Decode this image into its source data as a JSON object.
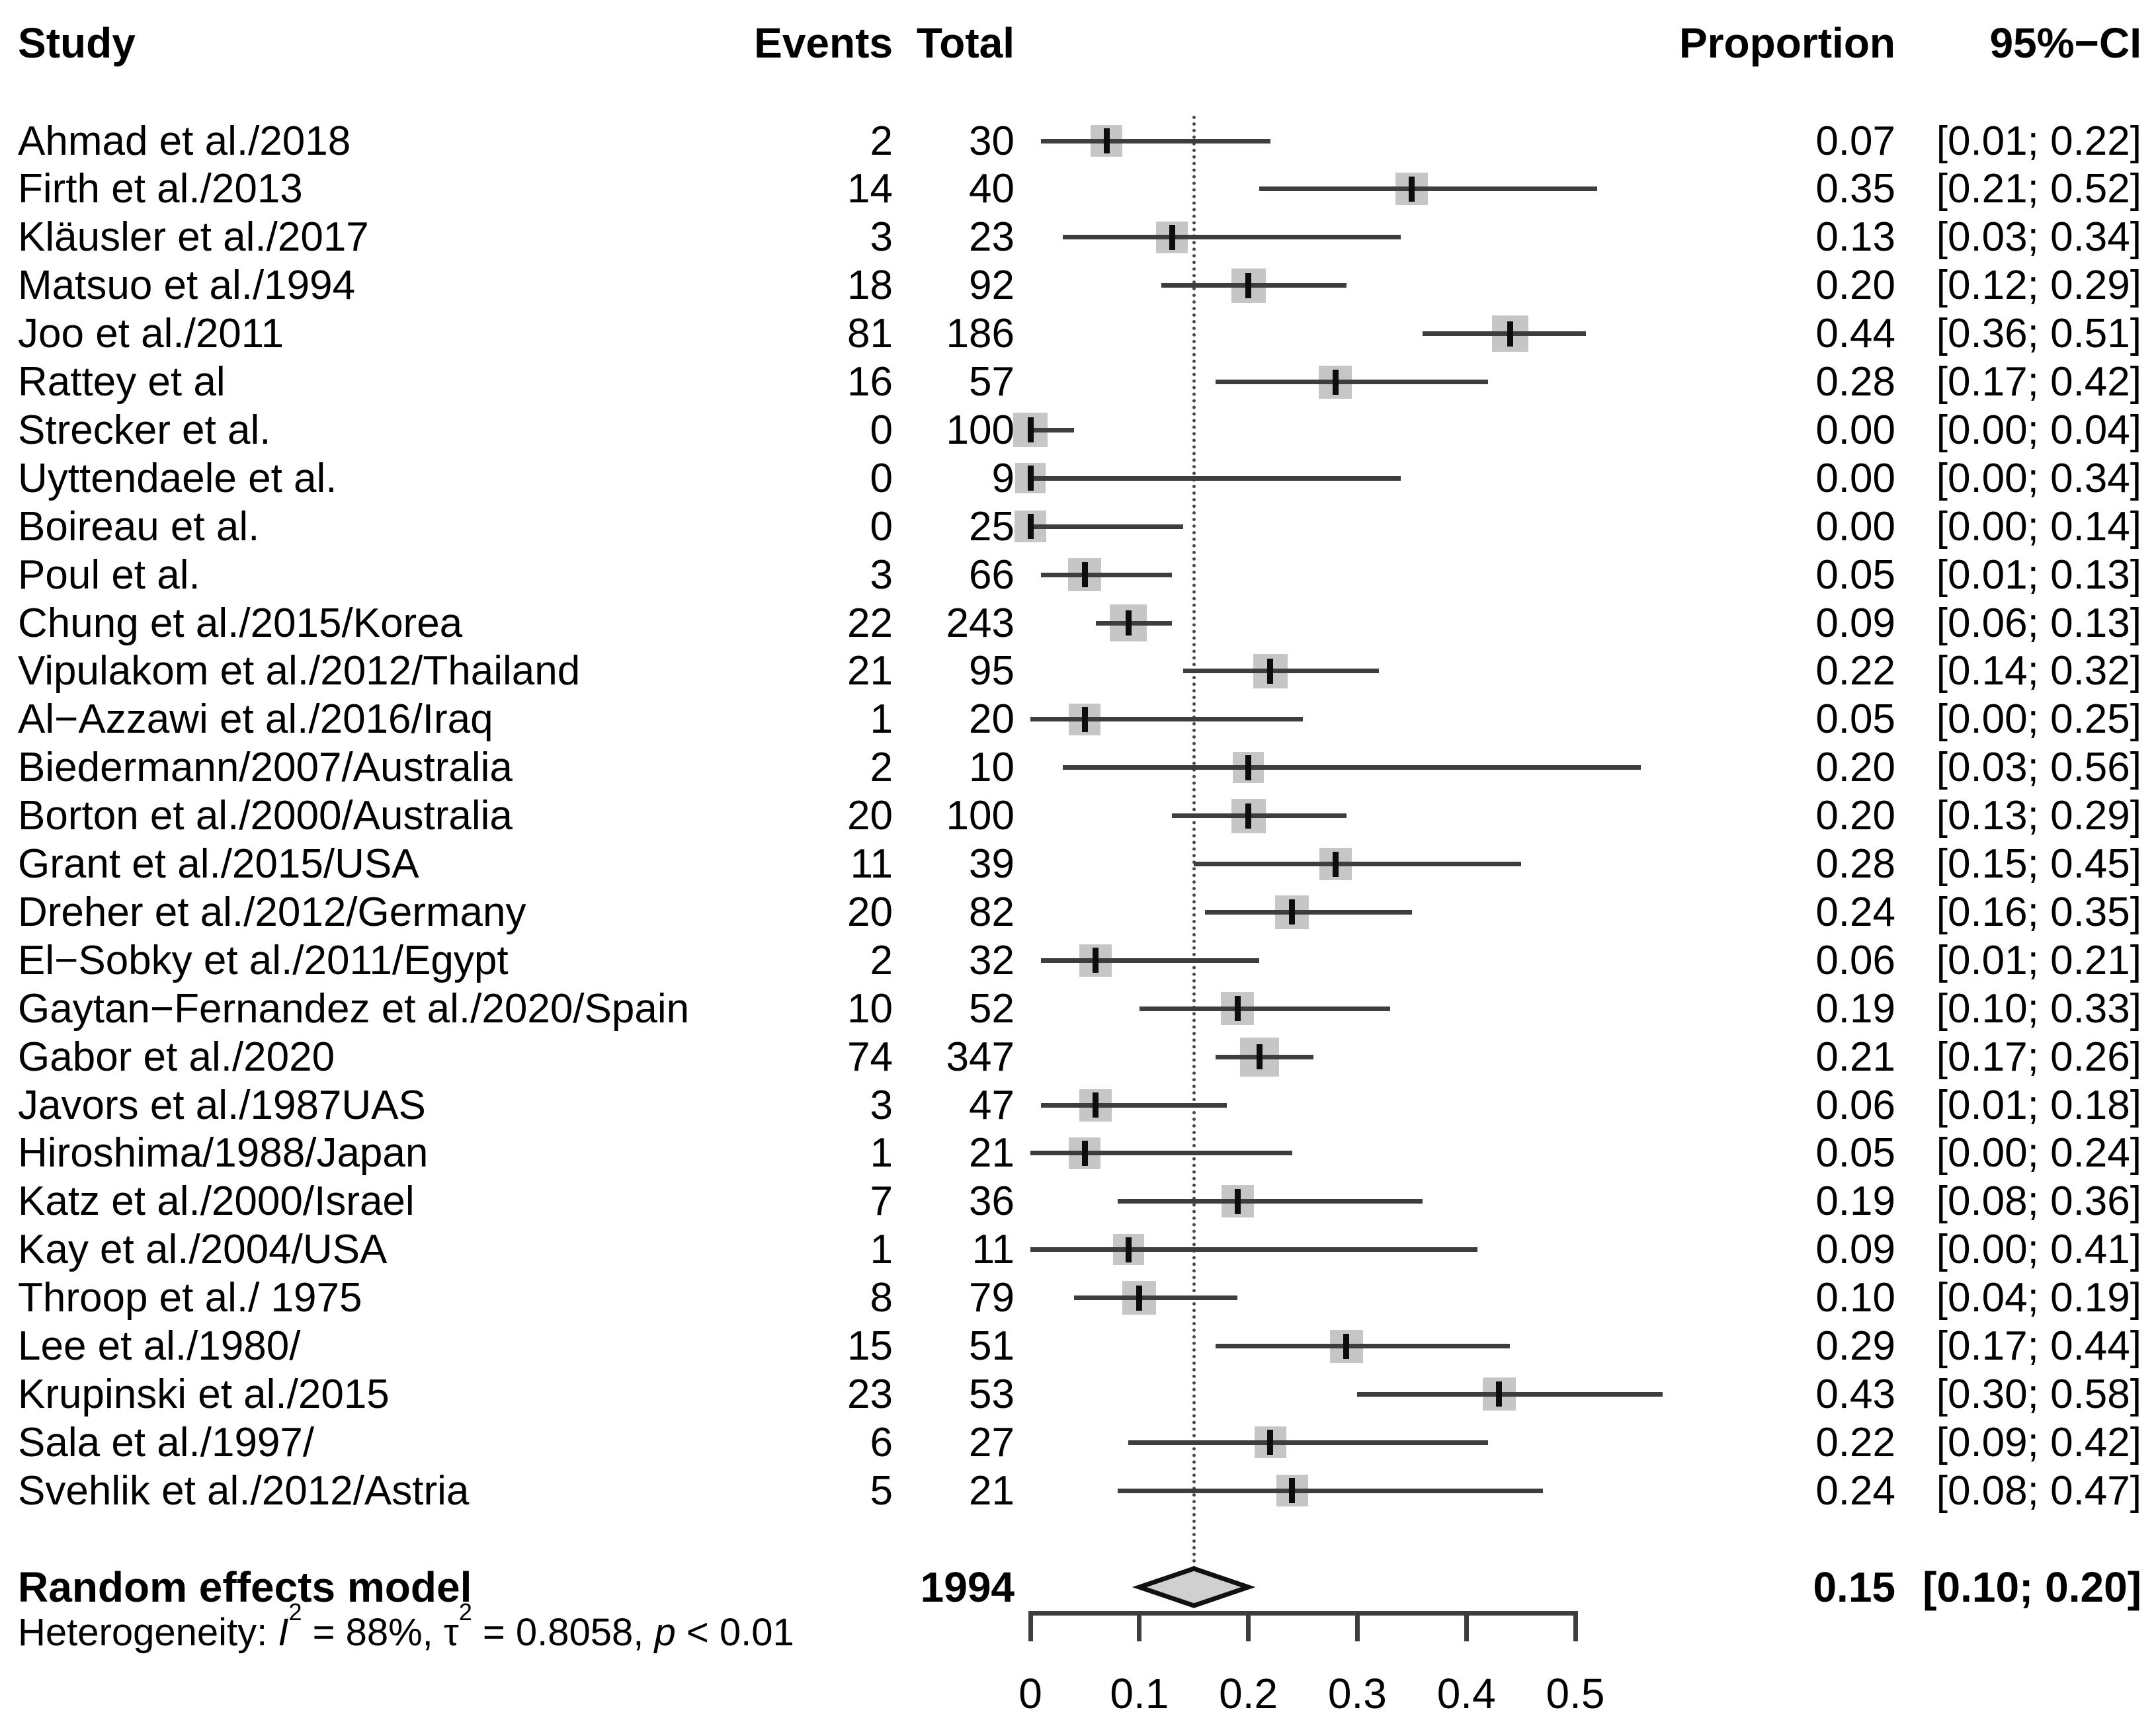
{
  "columns": {
    "study": "Study",
    "events": "Events",
    "total": "Total",
    "proportion": "Proportion",
    "ci": "95%−CI"
  },
  "chart_data": {
    "type": "scatter",
    "variant": "forest-plot-meta-analysis",
    "x_axis": {
      "ticks": [
        0,
        0.1,
        0.2,
        0.3,
        0.4,
        0.5
      ],
      "range": [
        0,
        0.5
      ],
      "grid": false
    },
    "reference_line": 0.15,
    "studies": [
      {
        "name": "Ahmad et al./2018",
        "events": 2,
        "total": 30,
        "proportion": 0.07,
        "ci_low": 0.01,
        "ci_high": 0.22
      },
      {
        "name": "Firth et al./2013",
        "events": 14,
        "total": 40,
        "proportion": 0.35,
        "ci_low": 0.21,
        "ci_high": 0.52
      },
      {
        "name": "Kläusler et al./2017",
        "events": 3,
        "total": 23,
        "proportion": 0.13,
        "ci_low": 0.03,
        "ci_high": 0.34
      },
      {
        "name": "Matsuo et al./1994",
        "events": 18,
        "total": 92,
        "proportion": 0.2,
        "ci_low": 0.12,
        "ci_high": 0.29
      },
      {
        "name": "Joo et al./2011",
        "events": 81,
        "total": 186,
        "proportion": 0.44,
        "ci_low": 0.36,
        "ci_high": 0.51
      },
      {
        "name": "Rattey et al",
        "events": 16,
        "total": 57,
        "proportion": 0.28,
        "ci_low": 0.17,
        "ci_high": 0.42
      },
      {
        "name": "Strecker et al.",
        "events": 0,
        "total": 100,
        "proportion": 0.0,
        "ci_low": 0.0,
        "ci_high": 0.04
      },
      {
        "name": "Uyttendaele et al.",
        "events": 0,
        "total": 9,
        "proportion": 0.0,
        "ci_low": 0.0,
        "ci_high": 0.34
      },
      {
        "name": "Boireau et al.",
        "events": 0,
        "total": 25,
        "proportion": 0.0,
        "ci_low": 0.0,
        "ci_high": 0.14
      },
      {
        "name": "Poul et al.",
        "events": 3,
        "total": 66,
        "proportion": 0.05,
        "ci_low": 0.01,
        "ci_high": 0.13
      },
      {
        "name": "Chung et al./2015/Korea",
        "events": 22,
        "total": 243,
        "proportion": 0.09,
        "ci_low": 0.06,
        "ci_high": 0.13
      },
      {
        "name": "Vipulakom et al./2012/Thailand",
        "events": 21,
        "total": 95,
        "proportion": 0.22,
        "ci_low": 0.14,
        "ci_high": 0.32
      },
      {
        "name": "Al−Azzawi et al./2016/Iraq",
        "events": 1,
        "total": 20,
        "proportion": 0.05,
        "ci_low": 0.0,
        "ci_high": 0.25
      },
      {
        "name": "Biedermann/2007/Australia",
        "events": 2,
        "total": 10,
        "proportion": 0.2,
        "ci_low": 0.03,
        "ci_high": 0.56
      },
      {
        "name": "Borton et al./2000/Australia",
        "events": 20,
        "total": 100,
        "proportion": 0.2,
        "ci_low": 0.13,
        "ci_high": 0.29
      },
      {
        "name": "Grant et al./2015/USA",
        "events": 11,
        "total": 39,
        "proportion": 0.28,
        "ci_low": 0.15,
        "ci_high": 0.45
      },
      {
        "name": "Dreher et al./2012/Germany",
        "events": 20,
        "total": 82,
        "proportion": 0.24,
        "ci_low": 0.16,
        "ci_high": 0.35
      },
      {
        "name": "El−Sobky et al./2011/Egypt",
        "events": 2,
        "total": 32,
        "proportion": 0.06,
        "ci_low": 0.01,
        "ci_high": 0.21
      },
      {
        "name": "Gaytan−Fernandez et al./2020/Spain",
        "events": 10,
        "total": 52,
        "proportion": 0.19,
        "ci_low": 0.1,
        "ci_high": 0.33
      },
      {
        "name": "Gabor et al./2020",
        "events": 74,
        "total": 347,
        "proportion": 0.21,
        "ci_low": 0.17,
        "ci_high": 0.26
      },
      {
        "name": "Javors et al./1987UAS",
        "events": 3,
        "total": 47,
        "proportion": 0.06,
        "ci_low": 0.01,
        "ci_high": 0.18
      },
      {
        "name": "Hiroshima/1988/Japan",
        "events": 1,
        "total": 21,
        "proportion": 0.05,
        "ci_low": 0.0,
        "ci_high": 0.24
      },
      {
        "name": "Katz et al./2000/Israel",
        "events": 7,
        "total": 36,
        "proportion": 0.19,
        "ci_low": 0.08,
        "ci_high": 0.36
      },
      {
        "name": "Kay et al./2004/USA",
        "events": 1,
        "total": 11,
        "proportion": 0.09,
        "ci_low": 0.0,
        "ci_high": 0.41
      },
      {
        "name": "Throop et al./ 1975",
        "events": 8,
        "total": 79,
        "proportion": 0.1,
        "ci_low": 0.04,
        "ci_high": 0.19
      },
      {
        "name": "Lee et al./1980/",
        "events": 15,
        "total": 51,
        "proportion": 0.29,
        "ci_low": 0.17,
        "ci_high": 0.44
      },
      {
        "name": "Krupinski et al./2015",
        "events": 23,
        "total": 53,
        "proportion": 0.43,
        "ci_low": 0.3,
        "ci_high": 0.58
      },
      {
        "name": "Sala et al./1997/",
        "events": 6,
        "total": 27,
        "proportion": 0.22,
        "ci_low": 0.09,
        "ci_high": 0.42
      },
      {
        "name": "Svehlik et al./2012/Astria",
        "events": 5,
        "total": 21,
        "proportion": 0.24,
        "ci_low": 0.08,
        "ci_high": 0.47
      }
    ],
    "summary": {
      "label": "Random effects model",
      "total": 1994,
      "proportion": 0.15,
      "ci_low": 0.1,
      "ci_high": 0.2
    },
    "heterogeneity_segments": [
      {
        "text": "Heterogeneity: ",
        "style": "normal"
      },
      {
        "text": "I",
        "style": "italic"
      },
      {
        "text": "2",
        "style": "sup"
      },
      {
        "text": " = 88%, ",
        "style": "normal"
      },
      {
        "text": "τ",
        "style": "normal"
      },
      {
        "text": "2",
        "style": "sup"
      },
      {
        "text": " = 0.8058, ",
        "style": "normal"
      },
      {
        "text": "p",
        "style": "italic"
      },
      {
        "text": " < 0.01",
        "style": "normal"
      }
    ],
    "colors": {
      "text": "#000000",
      "ci_line": "#3d3d3d",
      "weight_square": "#c6c6c6",
      "point_marker": "#0d0d0d",
      "reference_line": "#4a4a4a",
      "diamond_fill": "#d0d0d0",
      "diamond_stroke": "#111111",
      "axis": "#3d3d3d"
    }
  }
}
